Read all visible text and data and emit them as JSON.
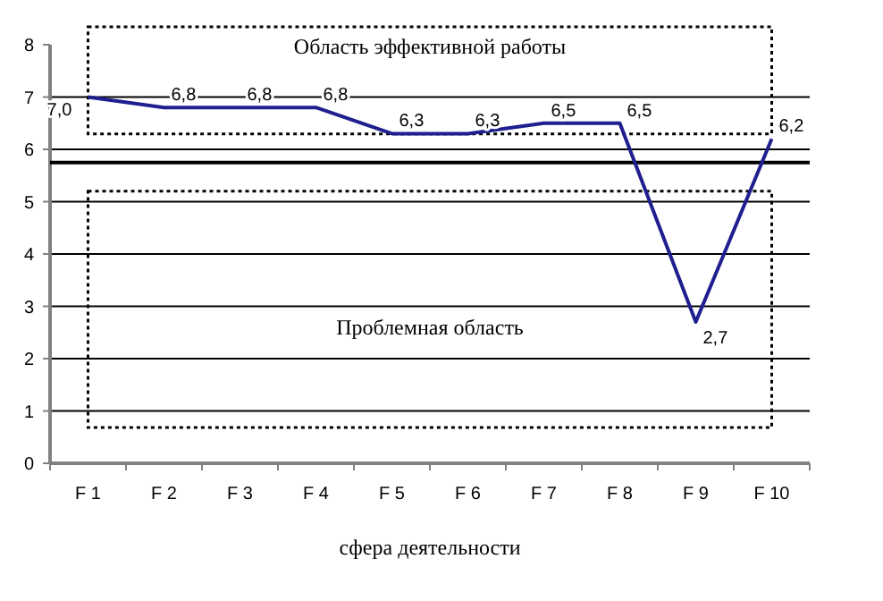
{
  "chart_data": {
    "type": "line",
    "xlabel": "сфера деятельности",
    "categories": [
      "F 1",
      "F 2",
      "F 3",
      "F 4",
      "F 5",
      "F 6",
      "F 7",
      "F 8",
      "F 9",
      "F 10"
    ],
    "series": [
      {
        "color": "#1f1f8f",
        "values": [
          7.0,
          6.8,
          6.8,
          6.8,
          6.3,
          6.3,
          6.5,
          6.5,
          2.7,
          6.2
        ],
        "value_labels": [
          "7,0",
          "6,8",
          "6,8",
          "6,8",
          "6,3",
          "6,3",
          "6,5",
          "6,5",
          "2,7",
          "6,2"
        ]
      }
    ],
    "ylim": [
      0,
      8
    ],
    "yticks": [
      0,
      1,
      2,
      3,
      4,
      5,
      6,
      7,
      8
    ],
    "grid": "y",
    "marker": "none",
    "line_style": "solid",
    "ref_lines": [
      {
        "axis": "y",
        "value": 5.75,
        "color": "#000000"
      }
    ],
    "annotations": [
      "Область эффективной работы",
      "Проблемная область"
    ]
  }
}
